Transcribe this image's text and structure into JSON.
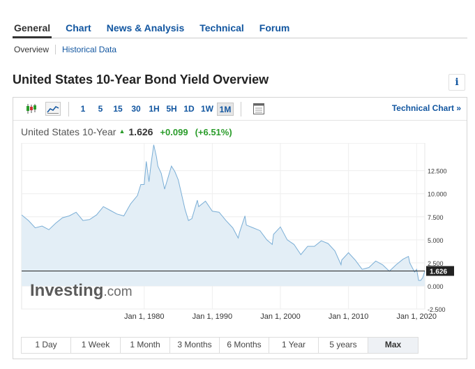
{
  "nav": {
    "tabs": [
      {
        "label": "General",
        "active": true
      },
      {
        "label": "Chart"
      },
      {
        "label": "News & Analysis"
      },
      {
        "label": "Technical"
      },
      {
        "label": "Forum"
      }
    ]
  },
  "subnav": {
    "overview": "Overview",
    "historical": "Historical Data"
  },
  "page": {
    "title": "United States 10-Year Bond Yield Overview",
    "info_icon": "i"
  },
  "toolbar": {
    "icons": [
      "candlestick-icon",
      "area-chart-icon",
      "calendar-icon"
    ],
    "timeframes": [
      "1",
      "5",
      "15",
      "30",
      "1H",
      "5H",
      "1D",
      "1W",
      "1M"
    ],
    "selected_timeframe": "1M",
    "technical_link": "Technical Chart »"
  },
  "quote": {
    "name": "United States 10-Year",
    "price": "1.626",
    "change": "+0.099",
    "change_pct": "(+6.51%)",
    "up_color": "#2a9c2a"
  },
  "chart_data": {
    "type": "area",
    "watermark": "Investing.com",
    "x_ticks": [
      "Jan 1, 1980",
      "Jan 1, 1990",
      "Jan 1, 2000",
      "Jan 1, 2010",
      "Jan 1, 2020"
    ],
    "y_ticks": [
      "12.500",
      "10.000",
      "7.500",
      "5.000",
      "2.500",
      "0.000",
      "-2.500"
    ],
    "ylim": [
      -2.5,
      15.5
    ],
    "xlim": [
      1962.0,
      2021.2
    ],
    "last_value_label": "1.626",
    "line_color": "#7aaed6",
    "fill_color": "#e3eef6",
    "series": [
      {
        "x": [
          1962,
          1963,
          1964,
          1965,
          1966,
          1967,
          1968,
          1969,
          1970,
          1971,
          1972,
          1973,
          1974,
          1975,
          1976,
          1977,
          1978,
          1979,
          1979.5,
          1980,
          1980.3,
          1980.7,
          1981,
          1981.4,
          1981.8,
          1982,
          1982.5,
          1983,
          1984,
          1984.5,
          1985,
          1986,
          1986.5,
          1987,
          1987.8,
          1988,
          1989,
          1990,
          1991,
          1992,
          1993,
          1993.8,
          1994,
          1994.8,
          1995,
          1996,
          1997,
          1998,
          1998.8,
          1999,
          2000,
          2001,
          2002,
          2003,
          2004,
          2005,
          2006,
          2007,
          2008,
          2008.9,
          2009,
          2010,
          2011,
          2012,
          2013,
          2014,
          2015,
          2016,
          2017,
          2018,
          2018.8,
          2019,
          2019.7,
          2020,
          2020.3,
          2020.6,
          2020.9,
          2021.2
        ],
        "values": [
          7.7,
          7.1,
          6.3,
          6.5,
          6.1,
          6.8,
          7.4,
          7.6,
          8.0,
          7.1,
          7.2,
          7.7,
          8.6,
          8.2,
          7.8,
          7.6,
          8.9,
          9.8,
          11.0,
          11.0,
          13.5,
          11.3,
          13.2,
          15.3,
          14.0,
          13.0,
          12.2,
          10.5,
          13.0,
          12.4,
          11.5,
          8.3,
          7.1,
          7.3,
          9.3,
          8.6,
          9.2,
          8.1,
          8.0,
          7.1,
          6.3,
          5.2,
          5.8,
          7.6,
          6.6,
          6.3,
          6.0,
          5.0,
          4.5,
          5.6,
          6.4,
          5.0,
          4.5,
          3.4,
          4.3,
          4.3,
          4.9,
          4.6,
          3.8,
          2.3,
          2.8,
          3.6,
          2.8,
          1.8,
          2.0,
          2.7,
          2.3,
          1.6,
          2.3,
          2.9,
          3.2,
          2.5,
          1.5,
          1.8,
          0.6,
          0.6,
          0.9,
          1.626
        ]
      }
    ]
  },
  "ranges": {
    "buttons": [
      "1 Day",
      "1 Week",
      "1 Month",
      "3 Months",
      "6 Months",
      "1 Year",
      "5 years",
      "Max"
    ],
    "selected": "Max"
  }
}
